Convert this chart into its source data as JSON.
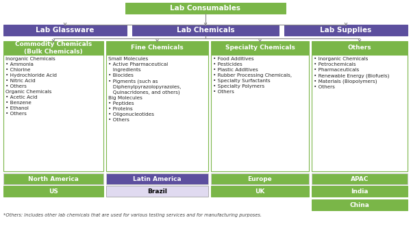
{
  "title": "Lab Consumables",
  "title_bg": "#7ab648",
  "title_color": "#ffffff",
  "level1": [
    "Lab Glassware",
    "Lab Chemicals",
    "Lab Supplies"
  ],
  "level1_bg": "#5c4f9e",
  "level1_color": "#ffffff",
  "level2_headers": [
    "Commodity Chemicals\n(Bulk Chemicals)",
    "Fine Chemicals",
    "Specialty Chemicals",
    "Others"
  ],
  "level2_bg": "#7ab648",
  "level2_color": "#ffffff",
  "level2_content": [
    "Inorganic Chemicals\n• Ammonia\n• Chlorine\n• Hydrochloride Acid\n• Nitric Acid\n• Others\nOrganic Chemicals\n• Acetic Acid\n• Benzene\n• Ethanol\n• Others",
    "Small Molecules\n• Active Pharmaceutical\n   Ingredients\n• Biocides\n• Pigments (such as\n   Diphenylpyrazolopyrazoles,\n   Quinacridones, and others)\nBig Molecules\n• Peptides\n• Proteins\n• Oligonucleotides\n• Others",
    "• Food Additives\n• Pesticides\n• Plastic Additives\n• Rubber Processing Chemicals,\n• Specialty Surfactants\n• Specialty Polymers\n• Others",
    "• Inorganic Chemicals\n• Petrochemicals\n• Pharmaceuticals\n• Renewable Energy (Biofuels)\n• Materials (Biopolymers)\n• Others"
  ],
  "level2_content_bg": "#ffffff",
  "level2_content_border": "#7ab648",
  "region_labels": [
    "North America",
    "Latin America",
    "Europe",
    "APAC"
  ],
  "region_bg": [
    "#7ab648",
    "#5c4f9e",
    "#7ab648",
    "#7ab648"
  ],
  "region_color": "#ffffff",
  "sub_region_labels": [
    "US",
    "Brazil",
    "UK",
    "India"
  ],
  "sub_region_bg": [
    "#7ab648",
    "#e0daf0",
    "#7ab648",
    "#7ab648"
  ],
  "sub_region_color": [
    "#ffffff",
    "#000000",
    "#ffffff",
    "#ffffff"
  ],
  "sub_region_bold": [
    true,
    true,
    true,
    true
  ],
  "extra_label": "China",
  "extra_bg": "#7ab648",
  "extra_color": "#ffffff",
  "footnote": "*Others: Includes other lab chemicals that are used for various testing services and for manufacturing purposes.",
  "line_color": "#888888",
  "bg_color": "#ffffff"
}
